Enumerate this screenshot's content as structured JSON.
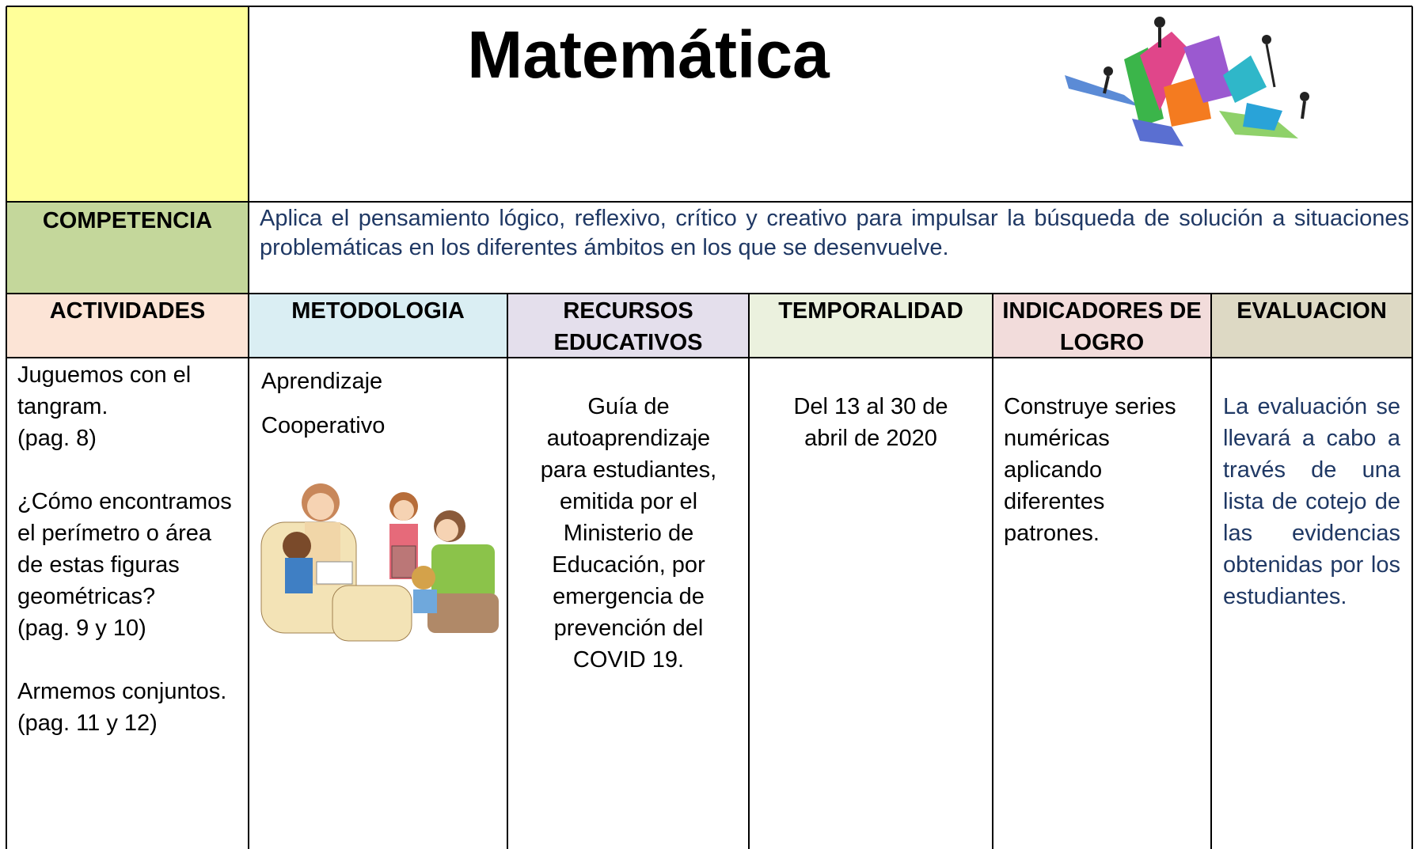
{
  "header": {
    "title": "Matemática"
  },
  "competencia": {
    "label": "COMPETENCIA",
    "text": "Aplica el pensamiento lógico, reflexivo, crítico y creativo para impulsar la búsqueda de solución a situaciones problemáticas en los diferentes ámbitos en los que se desenvuelve."
  },
  "table": {
    "headers": [
      "ACTIVIDADES",
      "METODOLOGIA",
      "RECURSOS EDUCATIVOS",
      "TEMPORALIDAD",
      "INDICADORES DE LOGRO",
      "EVALUACION"
    ],
    "cells": [
      [
        "Juguemos con el tangram.",
        "(pag. 8)",
        "¿Cómo encontramos el perímetro o área de estas figuras geométricas?",
        "(pag. 9 y 10)",
        "Armemos conjuntos.",
        "(pag. 11 y 12)"
      ],
      [
        "Aprendizaje",
        "Cooperativo"
      ],
      [
        "Guía de autoaprendizaje para estudiantes, emitida por el Ministerio de Educación, por emergencia de prevención del COVID 19."
      ],
      [
        "Del 13 al 30 de abril de 2020"
      ],
      [
        "Construye series numéricas aplicando diferentes patrones."
      ],
      [
        "La evaluación se llevará a cabo a través de una lista de cotejo de las evidencias obtenidas por los estudiantes."
      ]
    ]
  }
}
